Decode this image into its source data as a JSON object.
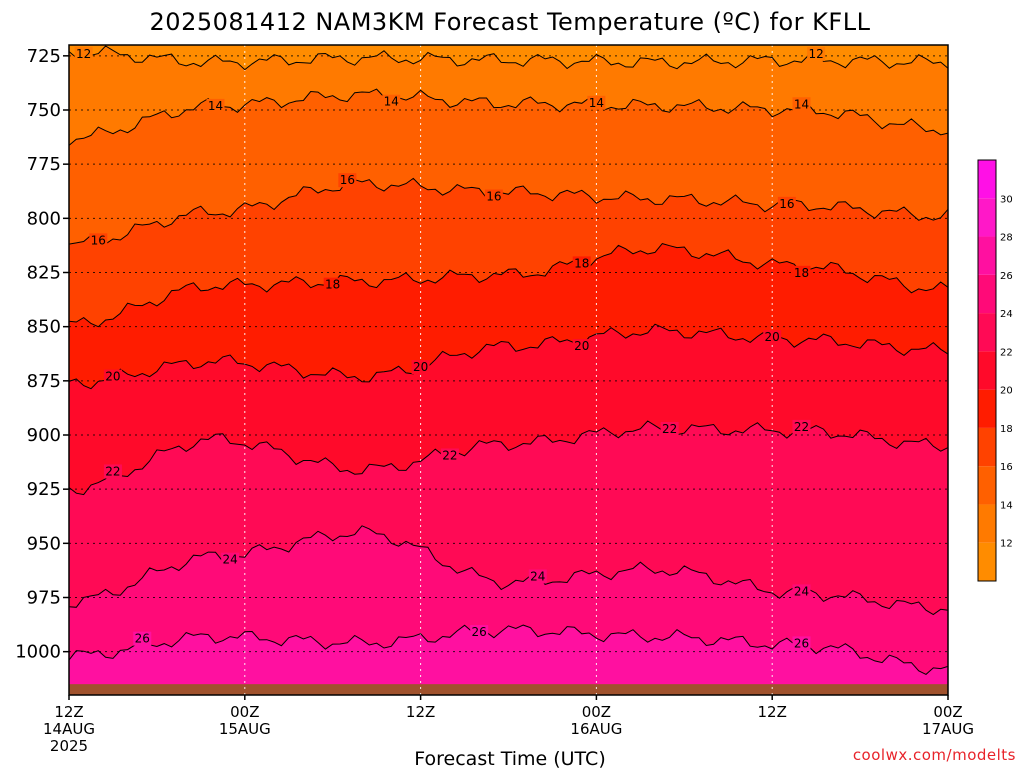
{
  "chart_data": {
    "type": "heatmap",
    "title": "2025081412 NAM3KM Forecast Temperature (ºC) for KFLL",
    "xlabel": "Forecast Time (UTC)",
    "ylabel": "",
    "x_range_hours": [
      0,
      60
    ],
    "y_range_hpa": [
      1020,
      720
    ],
    "y_reversed": true,
    "grid": true,
    "y_ticks": [
      725,
      750,
      775,
      800,
      825,
      850,
      875,
      900,
      925,
      950,
      975,
      1000
    ],
    "x_ticks": [
      {
        "hour": 0,
        "lines": [
          "12Z",
          "14AUG",
          "2025"
        ]
      },
      {
        "hour": 12,
        "lines": [
          "00Z",
          "15AUG"
        ]
      },
      {
        "hour": 24,
        "lines": [
          "12Z"
        ]
      },
      {
        "hour": 36,
        "lines": [
          "00Z",
          "16AUG"
        ]
      },
      {
        "hour": 48,
        "lines": [
          "12Z"
        ]
      },
      {
        "hour": 60,
        "lines": [
          "00Z",
          "17AUG"
        ]
      }
    ],
    "colorbar": {
      "placement": "right",
      "ticks": [
        12,
        14,
        16,
        18,
        20,
        22,
        24,
        26,
        28,
        30
      ],
      "levels": [
        {
          "range": [
            10,
            12
          ],
          "color": "#ff8c00"
        },
        {
          "range": [
            12,
            14
          ],
          "color": "#ff7a00"
        },
        {
          "range": [
            14,
            16
          ],
          "color": "#ff6000"
        },
        {
          "range": [
            16,
            18
          ],
          "color": "#ff4200"
        },
        {
          "range": [
            18,
            20
          ],
          "color": "#ff1c00"
        },
        {
          "range": [
            20,
            22
          ],
          "color": "#ff0a2a"
        },
        {
          "range": [
            22,
            24
          ],
          "color": "#ff0a55"
        },
        {
          "range": [
            24,
            26
          ],
          "color": "#ff0a78"
        },
        {
          "range": [
            26,
            28
          ],
          "color": "#ff10a0"
        },
        {
          "range": [
            28,
            30
          ],
          "color": "#ff18c8"
        },
        {
          "range": [
            30,
            32
          ],
          "color": "#ff10e6"
        }
      ]
    },
    "contours": [
      {
        "temp": 12,
        "pressure": [
          723,
          728,
          726,
          727,
          728,
          727,
          728
        ],
        "labels": [
          1,
          51
        ]
      },
      {
        "temp": 14,
        "pressure": [
          763,
          748,
          743,
          747,
          748,
          750,
          759
        ],
        "labels": [
          10,
          22,
          36,
          50
        ]
      },
      {
        "temp": 16,
        "pressure": [
          812,
          797,
          784,
          788,
          791,
          794,
          799
        ],
        "labels": [
          2,
          19,
          29,
          49
        ]
      },
      {
        "temp": 18,
        "pressure": [
          849,
          831,
          829,
          826,
          814,
          822,
          833
        ],
        "labels": [
          18,
          35,
          50
        ]
      },
      {
        "temp": 20,
        "pressure": [
          876,
          866,
          873,
          859,
          852,
          856,
          861
        ],
        "labels": [
          3,
          24,
          35,
          48
        ]
      },
      {
        "temp": 22,
        "pressure": [
          925,
          902,
          916,
          904,
          897,
          898,
          905
        ],
        "labels": [
          3,
          26,
          41,
          50
        ]
      },
      {
        "temp": 24,
        "pressure": [
          977,
          956,
          945,
          968,
          962,
          973,
          980
        ],
        "labels": [
          11,
          32,
          50
        ]
      },
      {
        "temp": 26,
        "pressure": [
          1002,
          993,
          996,
          990,
          993,
          997,
          1008
        ],
        "labels": [
          5,
          28,
          50
        ]
      }
    ],
    "surface_pressure": 1015
  },
  "colors": {
    "grid": "#000000",
    "ground": "#a0522d",
    "credit": "#e8232a",
    "contour": "#000000"
  },
  "credit": "coolwx.com/modelts"
}
